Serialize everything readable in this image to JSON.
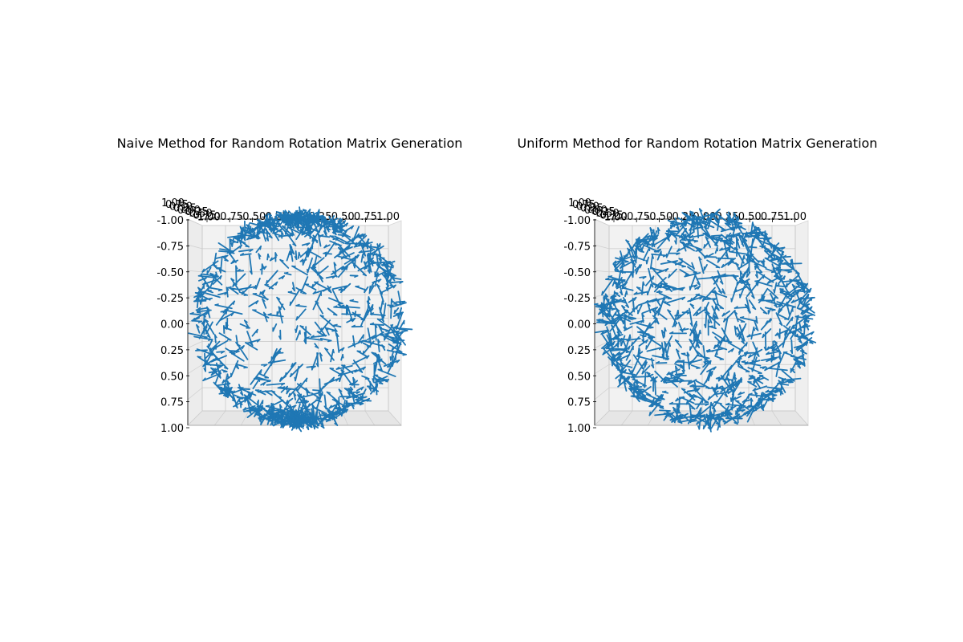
{
  "chart_data": [
    {
      "type": "scatter",
      "subtype": "3d-quiver",
      "title": "Naive Method for Random Rotation Matrix Generation",
      "xlabel": "",
      "ylabel": "",
      "zlabel": "",
      "xlim": [
        -1.0,
        1.0
      ],
      "ylim": [
        -1.0,
        1.0
      ],
      "zlim": [
        -1.0,
        1.0
      ],
      "x_ticks": [
        "-1.00",
        "-0.75",
        "-0.50",
        "-0.25",
        "0.00",
        "0.25",
        "0.50",
        "0.75",
        "1.00"
      ],
      "y_ticks": [
        "-1.00",
        "-0.75",
        "-0.50",
        "-0.25",
        "0.00",
        "0.25",
        "0.50",
        "0.75",
        "1.00"
      ],
      "z_ticks": [
        "1.00",
        "0.75",
        "0.50",
        "0.25",
        "0.00",
        "-0.25",
        "-0.50",
        "-0.75",
        "-1.00"
      ],
      "grid": true,
      "distribution": "naive",
      "arrow_count": 1000,
      "arrow_length": 0.1,
      "color": "#1f77b4"
    },
    {
      "type": "scatter",
      "subtype": "3d-quiver",
      "title": "Uniform Method for Random Rotation Matrix Generation",
      "xlabel": "",
      "ylabel": "",
      "zlabel": "",
      "xlim": [
        -1.0,
        1.0
      ],
      "ylim": [
        -1.0,
        1.0
      ],
      "zlim": [
        -1.0,
        1.0
      ],
      "x_ticks": [
        "-1.00",
        "-0.75",
        "-0.50",
        "-0.25",
        "0.00",
        "0.25",
        "0.50",
        "0.75",
        "1.00"
      ],
      "y_ticks": [
        "-1.00",
        "-0.75",
        "-0.50",
        "-0.25",
        "0.00",
        "0.25",
        "0.50",
        "0.75",
        "1.00"
      ],
      "z_ticks": [
        "1.00",
        "0.75",
        "0.50",
        "0.25",
        "0.00",
        "-0.25",
        "-0.50",
        "-0.75",
        "-1.00"
      ],
      "grid": true,
      "distribution": "uniform",
      "arrow_count": 1000,
      "arrow_length": 0.1,
      "color": "#1f77b4"
    }
  ]
}
